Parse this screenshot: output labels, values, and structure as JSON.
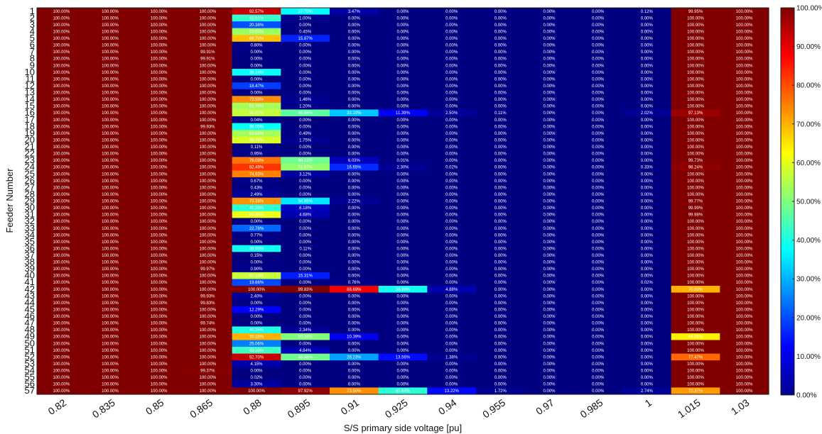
{
  "chart_data": {
    "type": "heatmap",
    "xlabel": "S/S primary side voltage [pu]",
    "ylabel": "Feeder Number",
    "x": [
      "0.82",
      "0.835",
      "0.85",
      "0.865",
      "0.88",
      "0.895",
      "0.91",
      "0.925",
      "0.94",
      "0.955",
      "0.97",
      "0.985",
      "1",
      "1.015",
      "1.03"
    ],
    "y": [
      "1",
      "2",
      "3",
      "4",
      "5",
      "6",
      "7",
      "8",
      "9",
      "10",
      "11",
      "12",
      "13",
      "14",
      "15",
      "16",
      "17",
      "18",
      "19",
      "20",
      "21",
      "22",
      "23",
      "24",
      "25",
      "26",
      "27",
      "28",
      "29",
      "30",
      "31",
      "32",
      "33",
      "34",
      "35",
      "36",
      "37",
      "38",
      "39",
      "40",
      "41",
      "42",
      "43",
      "44",
      "45",
      "46",
      "47",
      "48",
      "49",
      "50",
      "51",
      "52",
      "53",
      "54",
      "55",
      "56",
      "57"
    ],
    "values": [
      [
        100,
        100,
        100,
        100,
        92.57,
        37.7,
        3.47,
        0,
        0,
        0,
        0,
        0,
        0.12,
        99.95,
        100
      ],
      [
        100,
        100,
        100,
        100,
        42.51,
        1.0,
        0,
        0,
        0,
        0,
        0,
        0,
        0,
        100,
        100
      ],
      [
        100,
        100,
        100,
        100,
        20.38,
        0,
        0,
        0,
        0,
        0,
        0,
        0,
        0,
        100,
        100
      ],
      [
        100,
        100,
        100,
        100,
        52.64,
        0.45,
        0,
        0,
        0,
        0,
        0,
        0,
        0,
        100,
        100
      ],
      [
        100,
        100,
        100,
        100,
        68.72,
        15.87,
        0,
        0,
        0,
        0,
        0,
        0,
        0,
        100,
        100
      ],
      [
        100,
        100,
        100,
        100,
        0.8,
        0,
        0,
        0,
        0,
        0,
        0,
        0,
        0,
        100,
        100
      ],
      [
        100,
        100,
        100,
        99.91,
        0,
        0,
        0,
        0,
        0,
        0,
        0,
        0,
        0,
        100,
        100
      ],
      [
        100,
        100,
        100,
        99.91,
        0,
        0,
        0,
        0,
        0,
        0,
        0,
        0,
        0,
        100,
        100
      ],
      [
        100,
        100,
        100,
        100,
        0,
        0,
        0,
        0,
        0,
        0,
        0,
        0,
        0,
        100,
        100
      ],
      [
        100,
        100,
        100,
        100,
        38.24,
        0,
        0,
        0,
        0,
        0,
        0,
        0,
        0,
        100,
        100
      ],
      [
        100,
        100,
        100,
        100,
        0,
        0,
        0,
        0,
        0,
        0,
        0,
        0,
        0,
        100,
        100
      ],
      [
        100,
        100,
        100,
        100,
        18.47,
        0,
        0,
        0,
        0,
        0,
        0,
        0,
        0,
        100,
        100
      ],
      [
        100,
        100,
        100,
        100,
        0,
        0,
        0,
        0,
        0,
        0,
        0,
        0,
        0,
        100,
        100
      ],
      [
        100,
        100,
        100,
        100,
        73.59,
        1.46,
        0,
        0,
        0,
        0,
        0,
        0,
        0,
        100,
        100
      ],
      [
        100,
        100,
        100,
        100,
        53.74,
        1.2,
        0,
        0,
        0,
        0,
        0,
        0,
        0,
        100,
        100
      ],
      [
        100,
        100,
        100,
        100,
        56.67,
        46.64,
        32.1,
        11.39,
        2.5,
        0.11,
        0,
        0,
        2.02,
        97.13,
        100
      ],
      [
        100,
        100,
        100,
        100,
        0.04,
        0,
        0,
        0,
        0,
        0,
        0,
        0,
        0,
        100,
        100
      ],
      [
        100,
        100,
        100,
        99.93,
        38.05,
        0,
        0,
        0,
        0,
        0,
        0,
        0,
        0,
        100,
        100
      ],
      [
        100,
        100,
        100,
        100,
        53.52,
        0.49,
        0,
        0,
        0,
        0,
        0,
        0,
        0,
        100,
        100
      ],
      [
        100,
        100,
        100,
        100,
        58.76,
        1.75,
        0,
        0,
        0,
        0,
        0,
        0,
        0,
        100,
        100
      ],
      [
        100,
        100,
        100,
        100,
        0.11,
        0,
        0,
        0,
        0,
        0,
        0,
        0,
        0,
        100,
        100
      ],
      [
        100,
        100,
        100,
        100,
        0.95,
        0,
        0,
        0,
        0,
        0,
        0,
        0,
        0,
        100,
        100
      ],
      [
        100,
        100,
        100,
        100,
        76.09,
        48.12,
        6.03,
        0.01,
        0,
        0,
        0,
        0,
        0,
        99.73,
        100
      ],
      [
        100,
        100,
        100,
        100,
        82.49,
        51.87,
        16.65,
        2.3,
        0.02,
        0,
        0,
        0,
        0.33,
        98.24,
        100
      ],
      [
        100,
        100,
        100,
        100,
        74.93,
        3.12,
        0,
        0,
        0,
        0,
        0,
        0,
        0,
        100,
        100
      ],
      [
        100,
        100,
        100,
        100,
        0.67,
        0,
        0,
        0,
        0,
        0,
        0,
        0,
        0,
        100,
        100
      ],
      [
        100,
        100,
        100,
        100,
        0.43,
        0,
        0,
        0,
        0,
        0,
        0,
        0,
        0,
        100,
        100
      ],
      [
        100,
        100,
        100,
        100,
        2.49,
        0,
        0,
        0,
        0,
        0,
        0,
        0,
        0,
        100,
        100
      ],
      [
        100,
        100,
        100,
        100,
        73.38,
        34.95,
        2.22,
        0,
        0,
        0,
        0,
        0,
        0,
        99.77,
        100
      ],
      [
        100,
        100,
        100,
        100,
        41.39,
        6.18,
        0,
        0,
        0,
        0,
        0,
        0,
        0,
        99.99,
        100
      ],
      [
        100,
        100,
        100,
        100,
        60.49,
        4.68,
        0,
        0,
        0,
        0,
        0,
        0,
        0,
        99.98,
        100
      ],
      [
        100,
        100,
        100,
        100,
        0,
        0,
        0,
        0,
        0,
        0,
        0,
        0,
        0,
        100,
        100
      ],
      [
        100,
        100,
        100,
        100,
        22.78,
        0,
        0,
        0,
        0,
        0,
        0,
        0,
        0,
        100,
        100
      ],
      [
        100,
        100,
        100,
        100,
        0.77,
        0,
        0,
        0,
        0,
        0,
        0,
        0,
        0,
        100,
        100
      ],
      [
        100,
        100,
        100,
        100,
        0,
        0,
        0,
        0,
        0,
        0,
        0,
        0,
        0,
        100,
        100
      ],
      [
        100,
        100,
        100,
        100,
        38.95,
        0.11,
        0,
        0,
        0,
        0,
        0,
        0,
        0,
        100,
        100
      ],
      [
        100,
        100,
        100,
        100,
        0.15,
        0,
        0,
        0,
        0,
        0,
        0,
        0,
        0,
        100,
        100
      ],
      [
        100,
        100,
        100,
        100,
        0,
        0,
        0,
        0,
        0,
        0,
        0,
        0,
        0,
        100,
        100
      ],
      [
        100,
        100,
        100,
        99.97,
        0.9,
        0,
        0,
        0,
        0,
        0,
        0,
        0,
        0,
        100,
        100
      ],
      [
        100,
        100,
        100,
        100,
        57.13,
        15.31,
        0,
        0,
        0,
        0,
        0,
        0,
        0,
        100,
        100
      ],
      [
        100,
        100,
        100,
        100,
        19.66,
        0,
        0.76,
        0,
        0,
        0,
        0,
        0,
        0.02,
        100,
        100
      ],
      [
        100,
        100,
        100,
        100,
        100.0,
        99.83,
        88.69,
        38.99,
        4.88,
        0,
        0,
        0,
        0,
        70.0,
        100
      ],
      [
        100,
        100,
        100,
        99.93,
        2.4,
        0,
        0,
        0,
        0,
        0,
        0,
        0,
        0,
        100,
        100
      ],
      [
        100,
        100,
        100,
        99.83,
        0,
        0,
        0,
        0,
        0,
        0,
        0,
        0,
        0,
        100,
        100
      ],
      [
        100,
        100,
        100,
        100,
        12.29,
        0,
        0,
        0,
        0,
        0,
        0,
        0,
        0,
        100,
        100
      ],
      [
        100,
        100,
        100,
        100,
        0,
        0,
        0,
        0,
        0,
        0,
        0,
        0,
        0,
        100,
        100
      ],
      [
        100,
        100,
        100,
        99.74,
        0,
        0,
        0,
        0,
        0,
        0,
        0,
        0,
        0,
        100,
        100
      ],
      [
        100,
        100,
        100,
        100,
        40.24,
        2.34,
        0,
        0,
        0,
        0,
        0,
        0,
        0,
        100,
        100
      ],
      [
        100,
        100,
        100,
        100,
        70.26,
        50.34,
        10.39,
        0,
        0,
        0,
        0,
        0,
        0,
        64.06,
        100
      ],
      [
        100,
        100,
        100,
        100,
        25.06,
        0,
        0,
        0,
        0,
        0,
        0,
        0,
        0,
        100,
        100
      ],
      [
        100,
        100,
        100,
        100,
        43.39,
        4.84,
        0,
        0,
        0,
        0,
        0,
        0,
        0,
        100,
        100
      ],
      [
        100,
        100,
        100,
        100,
        92.7,
        48.48,
        28.23,
        13.56,
        1.38,
        0,
        0,
        0,
        0,
        77.47,
        100
      ],
      [
        100,
        100,
        100,
        100,
        4.15,
        0,
        0,
        0,
        0,
        0,
        0,
        0,
        0,
        100,
        100
      ],
      [
        100,
        100,
        100,
        99.37,
        0,
        0,
        0,
        0,
        0,
        0,
        0,
        0,
        0,
        100,
        100
      ],
      [
        100,
        100,
        100,
        100,
        0.02,
        0,
        0,
        0,
        0,
        0,
        0,
        0,
        0,
        100,
        100
      ],
      [
        100,
        100,
        100,
        100,
        3.3,
        0,
        0,
        0,
        0,
        0,
        0,
        0,
        0,
        100,
        100
      ],
      [
        100,
        100,
        100,
        100,
        100.0,
        97.92,
        73.5,
        41.64,
        13.22,
        1.72,
        0,
        0,
        2.74,
        72.37,
        100
      ]
    ],
    "value_unit": "%",
    "zlim": [
      0,
      100
    ],
    "colormap": "jet",
    "colorbar_ticks": [
      "0.00%",
      "10.00%",
      "20.00%",
      "30.00%",
      "40.00%",
      "50.00%",
      "60.00%",
      "70.00%",
      "80.00%",
      "90.00%",
      "100.00%"
    ],
    "grid": false,
    "colorbar_placement": "right"
  }
}
